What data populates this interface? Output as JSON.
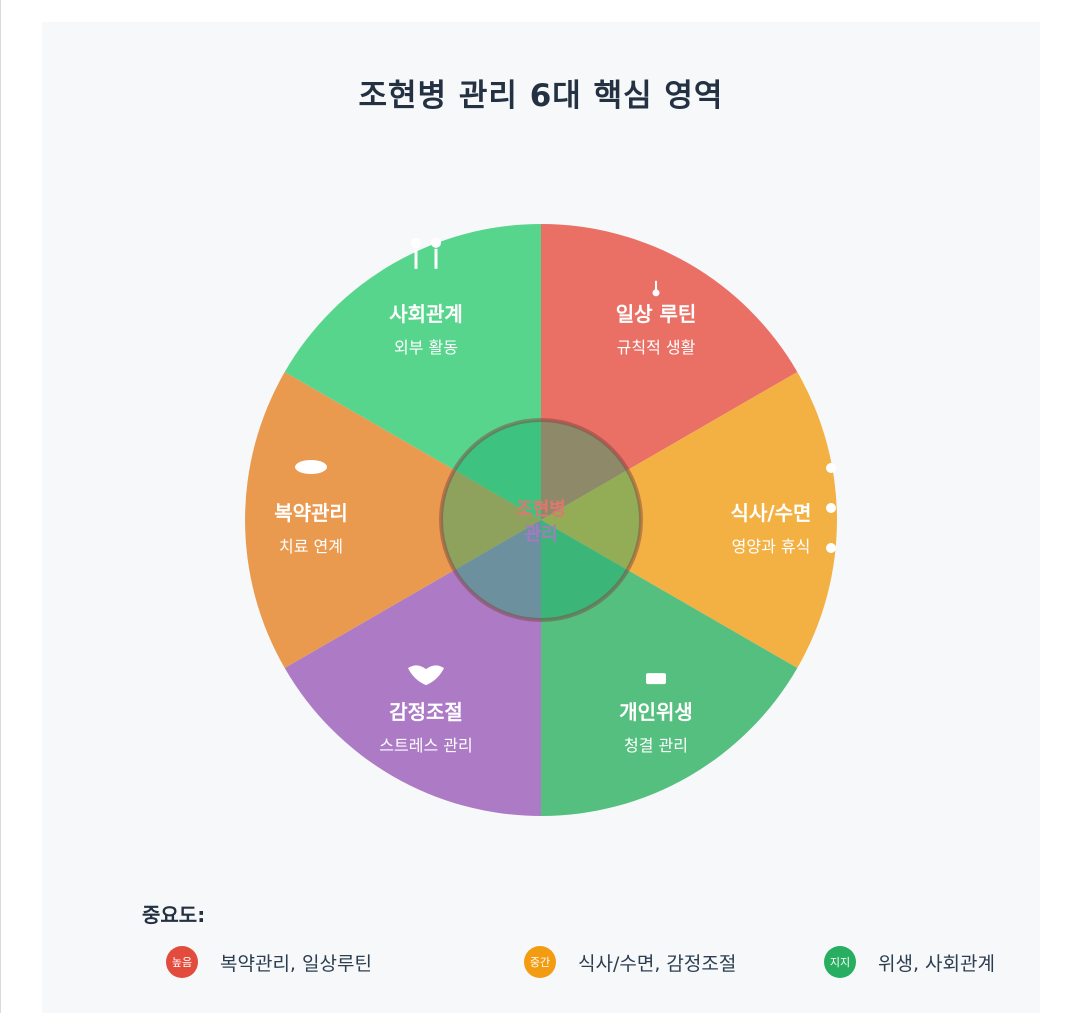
{
  "title": "조현병 관리 6대 핵심 영역",
  "center": {
    "line1": "조현병",
    "line2": "관리"
  },
  "segments": [
    {
      "title": "일상 루틴",
      "subtitle": "규칙적 생활",
      "color": "#ea6f65",
      "icon": "clock-icon"
    },
    {
      "title": "식사/수면",
      "subtitle": "영양과 휴식",
      "color": "#f3b043",
      "icon": "moon-meal-icon"
    },
    {
      "title": "개인위생",
      "subtitle": "청결 관리",
      "color": "#55bf80",
      "icon": "soap-icon"
    },
    {
      "title": "감정조절",
      "subtitle": "스트레스 관리",
      "color": "#ad7ac6",
      "icon": "heart-icon"
    },
    {
      "title": "복약관리",
      "subtitle": "치료 연계",
      "color": "#ea9a4f",
      "icon": "pill-icon"
    },
    {
      "title": "사회관계",
      "subtitle": "외부 활동",
      "color": "#58d58c",
      "icon": "people-icon"
    }
  ],
  "legend": {
    "heading": "중요도:",
    "items": [
      {
        "badge": "높음",
        "text": "복약관리, 일상루틴",
        "color": "#e34b3c"
      },
      {
        "badge": "중간",
        "text": "식사/수면, 감정조절",
        "color": "#f39c12"
      },
      {
        "badge": "지지",
        "text": "위생, 사회관계",
        "color": "#27ae60"
      }
    ]
  },
  "colors": {
    "background": "#f6f8fa",
    "title": "#233142"
  }
}
